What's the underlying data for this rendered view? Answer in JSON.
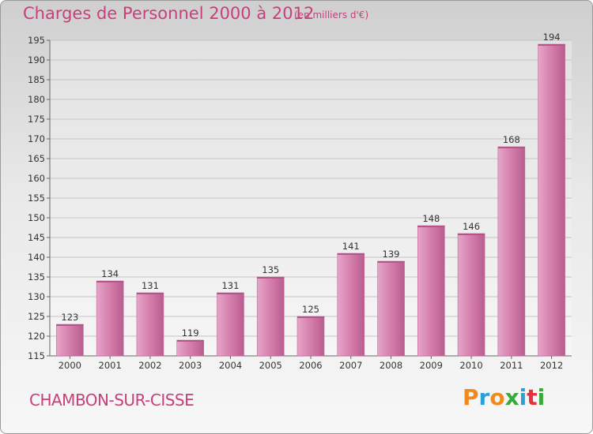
{
  "title": "Charges de Personnel 2000 à 2012",
  "subtitle": "(en milliers d'€)",
  "town": "CHAMBON-SUR-CISSE",
  "logo": {
    "text": "Proxiti",
    "letters": [
      "P",
      "r",
      "o",
      "x",
      "i",
      "t",
      "i"
    ],
    "colors": [
      "#f08a1e",
      "#2aa1d6",
      "#f08a1e",
      "#3aa93a",
      "#2aa1d6",
      "#e8303c",
      "#3aa93a"
    ]
  },
  "colors": {
    "accent": "#c8407a",
    "bar": "#d27aa8"
  },
  "chart_data": {
    "type": "bar",
    "title": "Charges de Personnel 2000 à 2012",
    "subtitle": "(en milliers d'€)",
    "categories": [
      "2000",
      "2001",
      "2002",
      "2003",
      "2004",
      "2005",
      "2006",
      "2007",
      "2008",
      "2009",
      "2010",
      "2011",
      "2012"
    ],
    "values": [
      123,
      134,
      131,
      119,
      131,
      135,
      125,
      141,
      139,
      148,
      146,
      168,
      194
    ],
    "ylim": [
      115,
      195
    ],
    "yticks": [
      115,
      120,
      125,
      130,
      135,
      140,
      145,
      150,
      155,
      160,
      165,
      170,
      175,
      180,
      185,
      190,
      195
    ],
    "grid": true
  }
}
